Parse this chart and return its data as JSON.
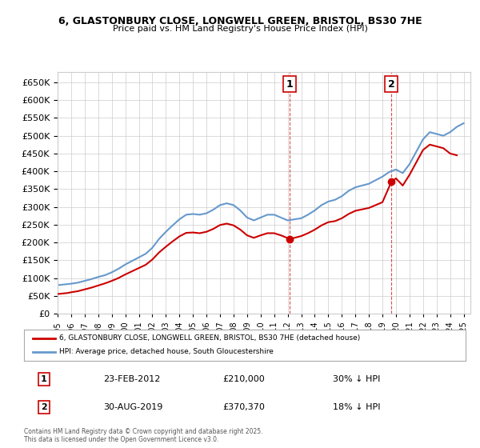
{
  "title": "6, GLASTONBURY CLOSE, LONGWELL GREEN, BRISTOL, BS30 7HE",
  "subtitle": "Price paid vs. HM Land Registry's House Price Index (HPI)",
  "ylabel": "",
  "xlim_start": 1995.0,
  "xlim_end": 2025.5,
  "ylim": [
    0,
    680000
  ],
  "yticks": [
    0,
    50000,
    100000,
    150000,
    200000,
    250000,
    300000,
    350000,
    400000,
    450000,
    500000,
    550000,
    600000,
    650000
  ],
  "purchase1_date": 2012.14,
  "purchase1_price": 210000,
  "purchase1_label": "1",
  "purchase2_date": 2019.66,
  "purchase2_price": 370370,
  "purchase2_label": "2",
  "red_line_color": "#cc0000",
  "blue_line_color": "#6699cc",
  "legend_red_label": "6, GLASTONBURY CLOSE, LONGWELL GREEN, BRISTOL, BS30 7HE (detached house)",
  "legend_blue_label": "HPI: Average price, detached house, South Gloucestershire",
  "table_row1": [
    "1",
    "23-FEB-2012",
    "£210,000",
    "30% ↓ HPI"
  ],
  "table_row2": [
    "2",
    "30-AUG-2019",
    "£370,370",
    "18% ↓ HPI"
  ],
  "footnote": "Contains HM Land Registry data © Crown copyright and database right 2025.\nThis data is licensed under the Open Government Licence v3.0.",
  "bg_color": "#ffffff",
  "grid_color": "#cccccc",
  "hpi_blue_data_x": [
    1995.0,
    1995.5,
    1996.0,
    1996.5,
    1997.0,
    1997.5,
    1998.0,
    1998.5,
    1999.0,
    1999.5,
    2000.0,
    2000.5,
    2001.0,
    2001.5,
    2002.0,
    2002.5,
    2003.0,
    2003.5,
    2004.0,
    2004.5,
    2005.0,
    2005.5,
    2006.0,
    2006.5,
    2007.0,
    2007.5,
    2008.0,
    2008.5,
    2009.0,
    2009.5,
    2010.0,
    2010.5,
    2011.0,
    2011.5,
    2012.0,
    2012.5,
    2013.0,
    2013.5,
    2014.0,
    2014.5,
    2015.0,
    2015.5,
    2016.0,
    2016.5,
    2017.0,
    2017.5,
    2018.0,
    2018.5,
    2019.0,
    2019.5,
    2020.0,
    2020.5,
    2021.0,
    2021.5,
    2022.0,
    2022.5,
    2023.0,
    2023.5,
    2024.0,
    2024.5,
    2025.0
  ],
  "hpi_blue_data_y": [
    80000,
    82000,
    84000,
    87000,
    92000,
    97000,
    103000,
    108000,
    116000,
    126000,
    138000,
    148000,
    158000,
    168000,
    185000,
    210000,
    230000,
    248000,
    265000,
    278000,
    280000,
    278000,
    282000,
    292000,
    305000,
    310000,
    305000,
    290000,
    270000,
    262000,
    270000,
    278000,
    278000,
    270000,
    262000,
    265000,
    268000,
    278000,
    290000,
    305000,
    315000,
    320000,
    330000,
    345000,
    355000,
    360000,
    365000,
    375000,
    385000,
    398000,
    405000,
    395000,
    420000,
    455000,
    490000,
    510000,
    505000,
    500000,
    510000,
    525000,
    535000
  ],
  "red_price_data_x": [
    1995.0,
    1995.25,
    1995.5,
    1995.75,
    1996.0,
    1996.5,
    1997.0,
    1997.5,
    1998.0,
    1998.5,
    1999.0,
    1999.5,
    2000.0,
    2000.5,
    2001.0,
    2001.5,
    2002.0,
    2002.5,
    2003.0,
    2003.5,
    2004.0,
    2004.5,
    2005.0,
    2005.5,
    2006.0,
    2006.5,
    2007.0,
    2007.5,
    2008.0,
    2008.5,
    2009.0,
    2009.5,
    2010.0,
    2010.5,
    2011.0,
    2011.5,
    2012.14,
    2012.5,
    2013.0,
    2013.5,
    2014.0,
    2014.5,
    2015.0,
    2015.5,
    2016.0,
    2016.5,
    2017.0,
    2017.5,
    2018.0,
    2018.5,
    2019.0,
    2019.66,
    2020.0,
    2020.5,
    2021.0,
    2021.5,
    2022.0,
    2022.5,
    2023.0,
    2023.5,
    2024.0,
    2024.5
  ],
  "red_price_data_y": [
    55000,
    56000,
    57000,
    58000,
    60000,
    63000,
    68000,
    73000,
    79000,
    85000,
    92000,
    100000,
    110000,
    119000,
    128000,
    137000,
    152000,
    172000,
    188000,
    203000,
    217000,
    227000,
    228000,
    226000,
    230000,
    238000,
    249000,
    253000,
    248000,
    236000,
    220000,
    213000,
    220000,
    226000,
    226000,
    220000,
    210000,
    213000,
    218000,
    226000,
    236000,
    248000,
    257000,
    260000,
    268000,
    280000,
    289000,
    293000,
    297000,
    305000,
    313000,
    370370,
    380000,
    360000,
    390000,
    425000,
    460000,
    475000,
    470000,
    465000,
    450000,
    445000
  ]
}
